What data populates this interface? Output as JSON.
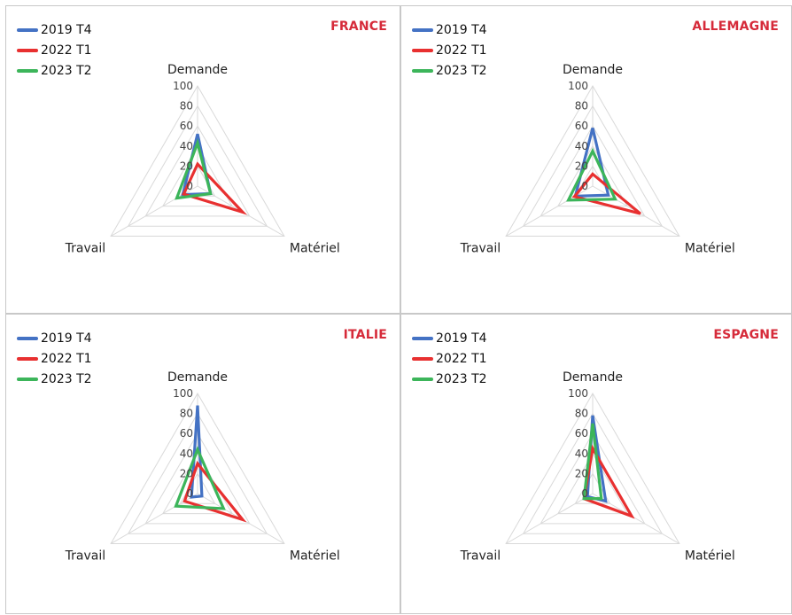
{
  "chart_data": [
    {
      "type": "radar",
      "title": "FRANCE",
      "axes": [
        "Demande",
        "Matériel",
        "Travail"
      ],
      "r_ticks": [
        "0",
        "20",
        "40",
        "60",
        "80",
        "100"
      ],
      "rlim": [
        0,
        100
      ],
      "legend_position": "top-left",
      "grid": true,
      "series": [
        {
          "name": "2019 T4",
          "color": "#4472c4",
          "values": [
            52,
            15,
            17
          ]
        },
        {
          "name": "2022 T1",
          "color": "#e83030",
          "values": [
            22,
            52,
            16
          ]
        },
        {
          "name": "2023 T2",
          "color": "#3cb55a",
          "values": [
            43,
            15,
            24
          ]
        }
      ]
    },
    {
      "type": "radar",
      "title": "ALLEMAGNE",
      "axes": [
        "Demande",
        "Matériel",
        "Travail"
      ],
      "r_ticks": [
        "0",
        "20",
        "40",
        "60",
        "80",
        "100"
      ],
      "rlim": [
        0,
        100
      ],
      "legend_position": "top-left",
      "grid": true,
      "series": [
        {
          "name": "2019 T4",
          "color": "#4472c4",
          "values": [
            58,
            18,
            20
          ]
        },
        {
          "name": "2022 T1",
          "color": "#e83030",
          "values": [
            12,
            55,
            21
          ]
        },
        {
          "name": "2023 T2",
          "color": "#3cb55a",
          "values": [
            35,
            26,
            28
          ]
        }
      ]
    },
    {
      "type": "radar",
      "title": "ITALIE",
      "axes": [
        "Demande",
        "Matériel",
        "Travail"
      ],
      "r_ticks": [
        "0",
        "20",
        "40",
        "60",
        "80",
        "100"
      ],
      "rlim": [
        0,
        100
      ],
      "legend_position": "top-left",
      "grid": true,
      "series": [
        {
          "name": "2019 T4",
          "color": "#4472c4",
          "values": [
            88,
            5,
            7
          ]
        },
        {
          "name": "2022 T1",
          "color": "#e83030",
          "values": [
            30,
            52,
            15
          ]
        },
        {
          "name": "2023 T2",
          "color": "#3cb55a",
          "values": [
            44,
            30,
            25
          ]
        }
      ]
    },
    {
      "type": "radar",
      "title": "ESPAGNE",
      "axes": [
        "Demande",
        "Matériel",
        "Travail"
      ],
      "r_ticks": [
        "0",
        "20",
        "40",
        "60",
        "80",
        "100"
      ],
      "rlim": [
        0,
        100
      ],
      "legend_position": "top-left",
      "grid": true,
      "series": [
        {
          "name": "2019 T4",
          "color": "#4472c4",
          "values": [
            78,
            15,
            6
          ]
        },
        {
          "name": "2022 T1",
          "color": "#e83030",
          "values": [
            45,
            45,
            10
          ]
        },
        {
          "name": "2023 T2",
          "color": "#3cb55a",
          "values": [
            70,
            10,
            10
          ]
        }
      ]
    }
  ]
}
